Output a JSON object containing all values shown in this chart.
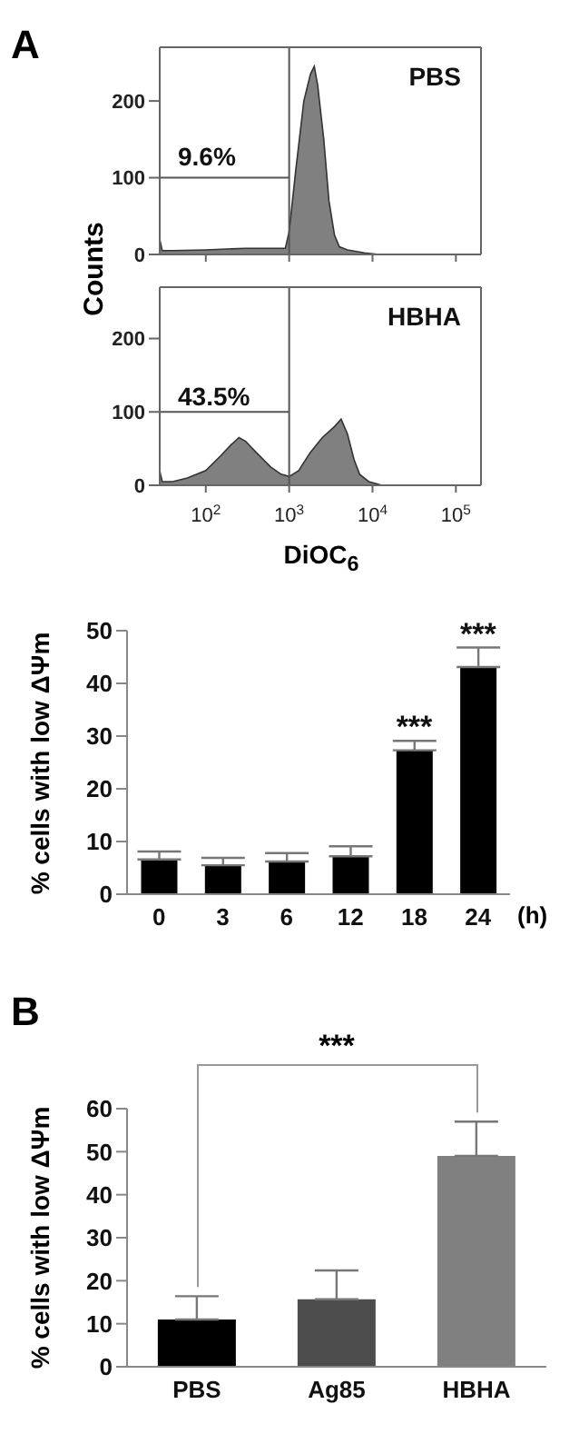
{
  "chart_data": [
    {
      "type": "area",
      "ylabel": "Counts",
      "annotations": [
        "A",
        "PBS",
        "9.6%"
      ],
      "log": "x",
      "xlim": [
        28,
        200000
      ],
      "xticks": [
        100,
        1000,
        10000,
        100000
      ],
      "ylim": [
        0,
        270
      ],
      "yticks": [
        0,
        100,
        200
      ],
      "tick_labels": "y",
      "grid": false,
      "legend": false,
      "series": [
        {
          "color": "#808080",
          "x": [
            28,
            30,
            40,
            100,
            300,
            600,
            900,
            1000,
            1200,
            1500,
            1800,
            2000,
            2200,
            2600,
            3000,
            3500,
            4000,
            5000,
            8000,
            12000,
            200000
          ],
          "values": [
            20,
            5,
            5,
            6,
            8,
            8,
            8,
            30,
            110,
            200,
            235,
            245,
            220,
            150,
            70,
            25,
            10,
            6,
            2,
            0,
            0
          ]
        }
      ],
      "ref_lines": [
        {
          "axis": "x",
          "value": 1000,
          "color": "#555555"
        },
        {
          "axis": "y",
          "value": 100,
          "color": "#555555"
        }
      ]
    },
    {
      "type": "area",
      "xlabel": "DiOC$_{6}$",
      "annotations": [
        "HBHA",
        "43.5%"
      ],
      "log": "x",
      "xlim": [
        28,
        200000
      ],
      "xticks": [
        {
          "value": 100,
          "label": "10$^{2}$"
        },
        {
          "value": 1000,
          "label": "10$^{3}$"
        },
        {
          "value": 10000,
          "label": "10$^{4}$"
        },
        {
          "value": 100000,
          "label": "10$^{5}$"
        }
      ],
      "ylim": [
        0,
        270
      ],
      "yticks": [
        0,
        100,
        200
      ],
      "grid": false,
      "legend": false,
      "series": [
        {
          "color": "#808080",
          "x": [
            28,
            30,
            40,
            60,
            100,
            150,
            200,
            250,
            300,
            400,
            600,
            800,
            1000,
            1300,
            1800,
            2500,
            3500,
            4200,
            5000,
            6000,
            7000,
            9000,
            13000,
            200000
          ],
          "values": [
            20,
            5,
            5,
            10,
            20,
            40,
            55,
            65,
            60,
            45,
            25,
            15,
            12,
            20,
            45,
            65,
            80,
            90,
            70,
            35,
            15,
            5,
            0,
            0
          ]
        }
      ],
      "ref_lines": [
        {
          "axis": "x",
          "value": 1000,
          "color": "#555555"
        },
        {
          "axis": "y",
          "value": 100,
          "color": "#555555"
        }
      ]
    },
    {
      "type": "bar",
      "ylabel": "% cells with low ΔΨm",
      "xlabel": "(h)",
      "categories": [
        "0",
        "3",
        "6",
        "12",
        "18",
        "24"
      ],
      "values": [
        6.6,
        5.5,
        6.2,
        7.2,
        27.3,
        43.1
      ],
      "color": "#000000",
      "errors": [
        [
          6.6,
          8.1
        ],
        [
          5.5,
          6.9
        ],
        [
          6.2,
          7.8
        ],
        [
          7.2,
          9.1
        ],
        [
          27.3,
          29.1
        ],
        [
          43.1,
          46.8
        ]
      ],
      "ylim": [
        0,
        50
      ],
      "yticks": [
        0,
        10,
        20,
        30,
        40,
        50
      ],
      "grid": false,
      "legend": false,
      "annotations": [
        {
          "text": "***",
          "x": "18",
          "y": 29.1
        },
        {
          "text": "***",
          "x": "24",
          "y": 46.8
        }
      ]
    },
    {
      "type": "bar",
      "ylabel": "% cells with low ΔΨm",
      "categories": [
        "PBS",
        "Ag85",
        "HBHA"
      ],
      "values": [
        11,
        15.7,
        49
      ],
      "colors": [
        "#000000",
        "#4d4d4d",
        "#808080"
      ],
      "errors": [
        [
          11,
          16.4
        ],
        [
          15.7,
          22.4
        ],
        [
          49,
          57
        ]
      ],
      "ylim": [
        0,
        60
      ],
      "yticks": [
        0,
        10,
        20,
        30,
        40,
        50,
        60
      ],
      "grid": false,
      "legend": false,
      "annotations": [
        "B",
        "***"
      ]
    }
  ]
}
